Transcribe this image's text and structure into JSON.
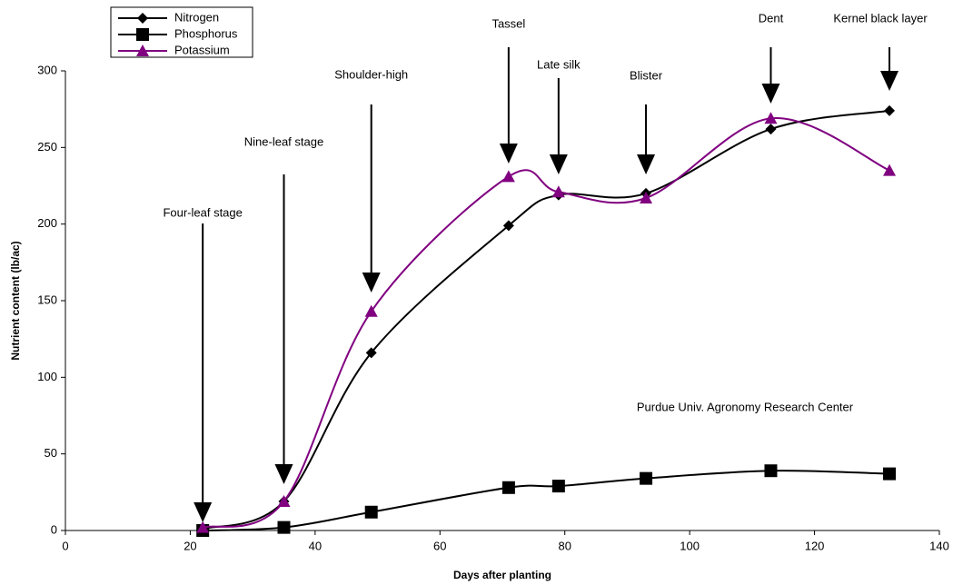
{
  "chart_data": {
    "type": "line",
    "x_label": "Days after planting",
    "y_label": "Nutrient content (lb/ac)",
    "x": [
      22,
      35,
      49,
      71,
      79,
      93,
      113,
      132
    ],
    "series": [
      {
        "name": "Nitrogen",
        "color": "#000000",
        "marker": "diamond",
        "values": [
          1,
          19,
          116,
          199,
          219,
          220,
          262,
          274
        ]
      },
      {
        "name": "Phosphorus",
        "color": "#000000",
        "marker": "square",
        "values": [
          0,
          2,
          12,
          28,
          29,
          34,
          39,
          37
        ]
      },
      {
        "name": "Potassium",
        "color": "#800080",
        "marker": "triangle",
        "values": [
          2,
          19,
          143,
          231,
          221,
          217,
          269,
          235
        ]
      }
    ],
    "stages": [
      "Four-leaf stage",
      "Nine-leaf stage",
      "Shoulder-high",
      "Tassel",
      "Late silk",
      "Blister",
      "Dent",
      "Kernel black layer"
    ],
    "note": "Purdue Univ. Agronomy Research Center",
    "xlim": [
      0,
      140
    ],
    "xticks": [
      0,
      20,
      40,
      60,
      80,
      100,
      120,
      140
    ],
    "ylim": [
      0,
      300
    ],
    "yticks": [
      0,
      50,
      100,
      150,
      200,
      250,
      300
    ],
    "legend": "top-left",
    "smooth": true
  }
}
